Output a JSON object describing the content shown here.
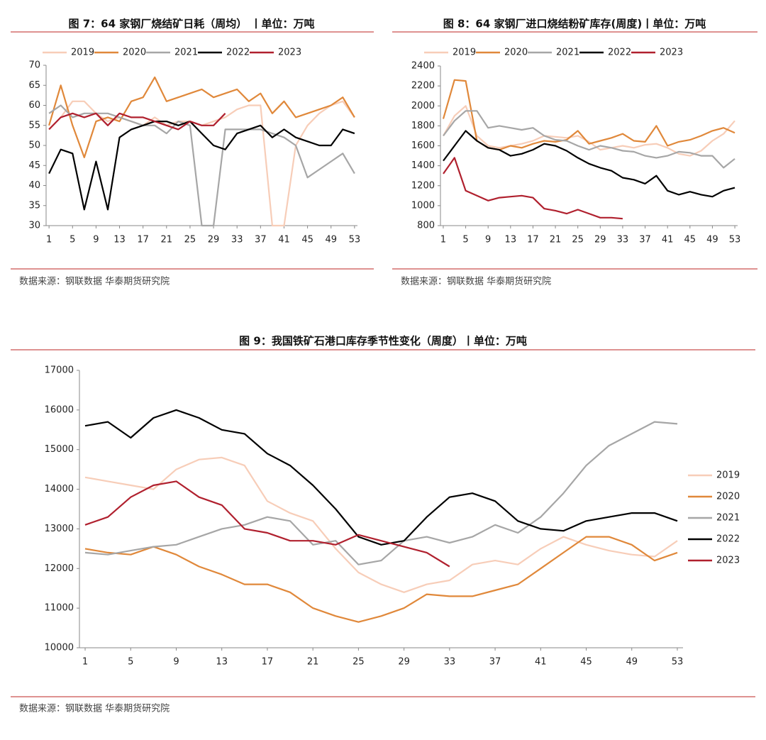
{
  "chart_data": [
    {
      "type": "line",
      "title": "图 7：64 家钢厂烧结矿日耗（周均） 丨单位：万吨",
      "source": "数据来源：钢联数据 华泰期货研究院",
      "legend": "top",
      "x": [
        1,
        3,
        5,
        7,
        9,
        11,
        13,
        15,
        17,
        19,
        21,
        23,
        25,
        27,
        29,
        31,
        33,
        35,
        37,
        39,
        41,
        43,
        45,
        47,
        49,
        51,
        53
      ],
      "xlim": [
        0.5,
        53.5
      ],
      "xticks": [
        1,
        5,
        9,
        13,
        17,
        21,
        25,
        29,
        33,
        37,
        41,
        45,
        49,
        53
      ],
      "ylim": [
        30,
        70
      ],
      "yticks": [
        30,
        35,
        40,
        45,
        50,
        55,
        60,
        65,
        70
      ],
      "series": [
        {
          "name": "2019",
          "color": "#f7cdb8",
          "values": [
            54,
            57,
            61,
            61,
            58,
            56,
            57,
            56,
            55,
            57,
            55,
            56,
            56,
            55,
            56,
            57,
            59,
            60,
            60,
            30,
            30,
            50,
            55,
            58,
            60,
            61,
            57
          ]
        },
        {
          "name": "2020",
          "color": "#e0883a",
          "values": [
            55,
            65,
            55,
            47,
            56,
            57,
            56,
            61,
            62,
            67,
            61,
            62,
            63,
            64,
            62,
            63,
            64,
            61,
            63,
            58,
            61,
            57,
            58,
            59,
            60,
            62,
            57
          ]
        },
        {
          "name": "2021",
          "color": "#a6a6a6",
          "values": [
            58,
            60,
            57,
            58,
            58,
            58,
            57,
            56,
            55,
            55,
            53,
            56,
            55,
            30,
            30,
            54,
            54,
            54,
            54,
            53,
            52,
            50,
            42,
            44,
            46,
            48,
            43
          ]
        },
        {
          "name": "2022",
          "color": "#000000",
          "values": [
            43,
            49,
            48,
            34,
            46,
            34,
            52,
            54,
            55,
            56,
            56,
            55,
            56,
            53,
            50,
            49,
            53,
            54,
            55,
            52,
            54,
            52,
            51,
            50,
            50,
            54,
            53
          ]
        },
        {
          "name": "2023",
          "color": "#b0202e",
          "values": [
            54,
            57,
            58,
            57,
            58,
            55,
            58,
            57,
            57,
            56,
            55,
            54,
            56,
            55,
            55,
            58,
            null,
            null,
            null,
            null,
            null,
            null,
            null,
            null,
            null,
            null,
            null
          ]
        }
      ]
    },
    {
      "type": "line",
      "title": "图 8：64 家钢厂进口烧结粉矿库存(周度)丨单位：万吨",
      "source": "数据来源：钢联数据 华泰期货研究院",
      "legend": "top",
      "x": [
        1,
        3,
        5,
        7,
        9,
        11,
        13,
        15,
        17,
        19,
        21,
        23,
        25,
        27,
        29,
        31,
        33,
        35,
        37,
        39,
        41,
        43,
        45,
        47,
        49,
        51,
        53
      ],
      "xlim": [
        0.5,
        53.5
      ],
      "xticks": [
        1,
        5,
        9,
        13,
        17,
        21,
        25,
        29,
        33,
        37,
        41,
        45,
        49,
        53
      ],
      "ylim": [
        800,
        2400
      ],
      "yticks": [
        800,
        1000,
        1200,
        1400,
        1600,
        1800,
        2000,
        2200,
        2400
      ],
      "series": [
        {
          "name": "2019",
          "color": "#f7cdb8",
          "values": [
            1700,
            1900,
            2000,
            1700,
            1600,
            1580,
            1600,
            1620,
            1650,
            1700,
            1690,
            1680,
            1700,
            1640,
            1560,
            1580,
            1600,
            1580,
            1610,
            1620,
            1580,
            1520,
            1500,
            1550,
            1650,
            1720,
            1850
          ]
        },
        {
          "name": "2020",
          "color": "#e0883a",
          "values": [
            1870,
            2260,
            2250,
            1650,
            1580,
            1560,
            1600,
            1580,
            1620,
            1650,
            1640,
            1660,
            1750,
            1620,
            1650,
            1680,
            1720,
            1650,
            1640,
            1800,
            1600,
            1640,
            1660,
            1700,
            1750,
            1780,
            1730
          ]
        },
        {
          "name": "2021",
          "color": "#a6a6a6",
          "values": [
            1700,
            1850,
            1950,
            1950,
            1780,
            1800,
            1780,
            1760,
            1780,
            1700,
            1660,
            1650,
            1600,
            1560,
            1600,
            1580,
            1550,
            1540,
            1500,
            1480,
            1500,
            1540,
            1530,
            1500,
            1500,
            1380,
            1470
          ]
        },
        {
          "name": "2022",
          "color": "#000000",
          "values": [
            1450,
            1600,
            1750,
            1650,
            1580,
            1560,
            1500,
            1520,
            1560,
            1620,
            1600,
            1550,
            1480,
            1420,
            1380,
            1350,
            1280,
            1260,
            1220,
            1300,
            1150,
            1110,
            1140,
            1110,
            1090,
            1150,
            1180
          ]
        },
        {
          "name": "2023",
          "color": "#b0202e",
          "values": [
            1320,
            1480,
            1150,
            1100,
            1050,
            1080,
            1090,
            1100,
            1080,
            970,
            950,
            920,
            960,
            920,
            880,
            880,
            870,
            null,
            null,
            null,
            null,
            null,
            null,
            null,
            null,
            null,
            null
          ]
        }
      ]
    },
    {
      "type": "line",
      "title": "图 9：我国铁矿石港口库存季节性变化（周度）丨单位：万吨",
      "source": "数据来源：钢联数据 华泰期货研究院",
      "legend": "right",
      "x": [
        1,
        3,
        5,
        7,
        9,
        11,
        13,
        15,
        17,
        19,
        21,
        23,
        25,
        27,
        29,
        31,
        33,
        35,
        37,
        39,
        41,
        43,
        45,
        47,
        49,
        51,
        53
      ],
      "xlim": [
        0.5,
        53.5
      ],
      "xticks": [
        1,
        5,
        9,
        13,
        17,
        21,
        25,
        29,
        33,
        37,
        41,
        45,
        49,
        53
      ],
      "ylim": [
        10000,
        17000
      ],
      "yticks": [
        10000,
        11000,
        12000,
        13000,
        14000,
        15000,
        16000,
        17000
      ],
      "series": [
        {
          "name": "2019",
          "color": "#f7cdb8",
          "values": [
            14300,
            14200,
            14100,
            14000,
            14500,
            14750,
            14800,
            14600,
            13700,
            13400,
            13200,
            12500,
            11900,
            11600,
            11400,
            11600,
            11700,
            12100,
            12200,
            12100,
            12500,
            12800,
            12600,
            12450,
            12350,
            12300,
            12700
          ]
        },
        {
          "name": "2020",
          "color": "#e0883a",
          "values": [
            12500,
            12400,
            12350,
            12550,
            12350,
            12050,
            11850,
            11600,
            11600,
            11400,
            11000,
            10800,
            10650,
            10800,
            11000,
            11350,
            11300,
            11300,
            11450,
            11600,
            12000,
            12400,
            12800,
            12800,
            12600,
            12200,
            12400
          ]
        },
        {
          "name": "2021",
          "color": "#a6a6a6",
          "values": [
            12400,
            12350,
            12450,
            12550,
            12600,
            12800,
            13000,
            13100,
            13300,
            13200,
            12600,
            12700,
            12100,
            12200,
            12700,
            12800,
            12650,
            12800,
            13100,
            12900,
            13300,
            13900,
            14600,
            15100,
            15400,
            15700,
            15650
          ]
        },
        {
          "name": "2022",
          "color": "#000000",
          "values": [
            15600,
            15700,
            15300,
            15800,
            16000,
            15800,
            15500,
            15400,
            14900,
            14600,
            14100,
            13500,
            12800,
            12600,
            12700,
            13300,
            13800,
            13900,
            13700,
            13200,
            13000,
            12950,
            13200,
            13300,
            13400,
            13400,
            13200
          ]
        },
        {
          "name": "2023",
          "color": "#b0202e",
          "values": [
            13100,
            13300,
            13800,
            14100,
            14200,
            13800,
            13600,
            13000,
            12900,
            12700,
            12700,
            12600,
            12850,
            12700,
            12550,
            12400,
            12050,
            null,
            null,
            null,
            null,
            null,
            null,
            null,
            null,
            null,
            null
          ]
        }
      ]
    }
  ]
}
